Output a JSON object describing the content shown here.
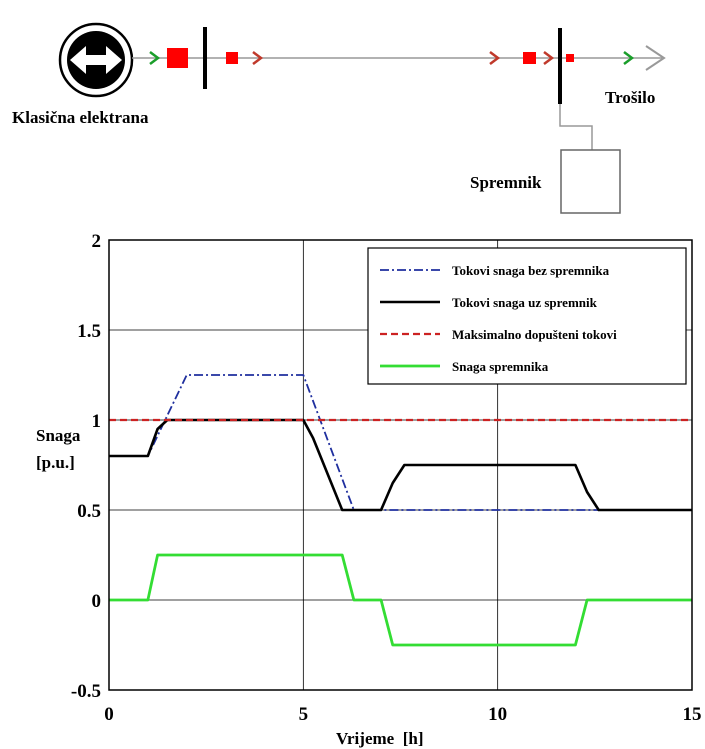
{
  "diagram": {
    "plant_label": "Klasična elektrana",
    "load_label": "Trošilo",
    "storage_label": "Spremnik",
    "colors": {
      "arrow_green": "#1a9e2a",
      "arrow_red": "#c0392b",
      "marker_red": "#ff0000",
      "line": "#999999"
    },
    "icons": [
      "generator-icon",
      "double-arrow-icon",
      "bus-bar",
      "flow-arrow"
    ]
  },
  "chart_data": {
    "type": "line",
    "xlabel": "Vrijeme  [h]",
    "ylabel": [
      "Snaga",
      "[p.u.]"
    ],
    "xlim": [
      0,
      15
    ],
    "ylim": [
      -0.5,
      2
    ],
    "xticks": [
      0,
      5,
      10,
      15
    ],
    "yticks": [
      -0.5,
      0,
      0.5,
      1,
      1.5,
      2
    ],
    "ytick_labels": [
      "-0.5",
      "0",
      "0.5",
      "1",
      "1.5",
      "2"
    ],
    "grid": true,
    "legend_position": "top-right",
    "series": [
      {
        "name": "Tokovi snaga bez spremnika",
        "color": "#1f2f9e",
        "dash": "dashdot",
        "x": [
          0,
          1,
          2,
          5,
          6.3,
          15
        ],
        "y": [
          0.8,
          0.8,
          1.25,
          1.25,
          0.5,
          0.5
        ]
      },
      {
        "name": "Tokovi snaga uz spremnik",
        "color": "#000000",
        "dash": "solid",
        "x": [
          0,
          1,
          1.25,
          1.5,
          5,
          5.25,
          6,
          7,
          7.3,
          7.6,
          12,
          12.3,
          12.6,
          15
        ],
        "y": [
          0.8,
          0.8,
          0.95,
          1,
          1,
          0.9,
          0.5,
          0.5,
          0.65,
          0.75,
          0.75,
          0.6,
          0.5,
          0.5
        ]
      },
      {
        "name": "Maksimalno dopušteni tokovi",
        "color": "#cc2222",
        "dash": "dashed",
        "x": [
          0,
          15
        ],
        "y": [
          1,
          1
        ]
      },
      {
        "name": "Snaga spremnika",
        "color": "#33dd33",
        "dash": "solid",
        "x": [
          0,
          1,
          1.25,
          6,
          6.3,
          7,
          7.3,
          12,
          12.3,
          15
        ],
        "y": [
          0,
          0,
          0.25,
          0.25,
          0,
          0,
          -0.25,
          -0.25,
          0,
          0
        ]
      }
    ]
  }
}
